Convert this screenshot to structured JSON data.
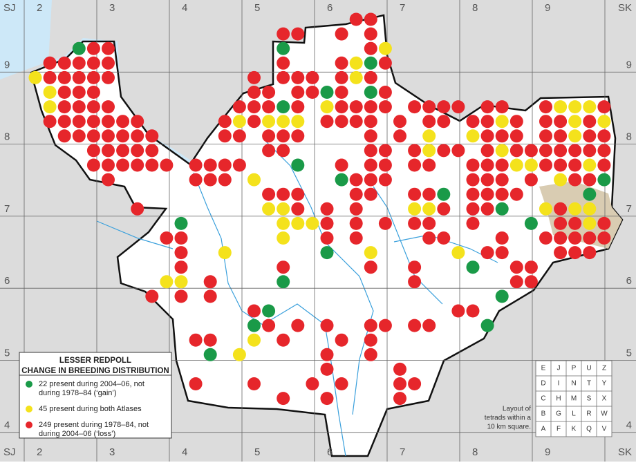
{
  "grid": {
    "corner_left": "SJ",
    "corner_right": "SK",
    "columns": [
      "2",
      "3",
      "4",
      "5",
      "6",
      "7",
      "8",
      "9"
    ],
    "rows": [
      "9",
      "8",
      "7",
      "6",
      "5",
      "4"
    ]
  },
  "legend": {
    "title_lines": [
      "LESSER REDPOLL",
      "CHANGE IN BREEDING DISTRIBUTION"
    ],
    "items": [
      {
        "color": "#1a9a48",
        "lines": [
          "22 present during 2004–06, not",
          "during 1978–84 (‘gain’)"
        ]
      },
      {
        "color": "#f4e21c",
        "lines": [
          "45 present during both Atlases"
        ]
      },
      {
        "color": "#e6262b",
        "lines": [
          "249 present during 1978–84, not",
          "during 2004–06 (‘loss’)"
        ]
      }
    ]
  },
  "tetrad_layout": {
    "caption_lines": [
      "Layout of",
      "tetrads within a",
      "10 km square."
    ],
    "rows": [
      [
        "E",
        "J",
        "P",
        "U",
        "Z"
      ],
      [
        "D",
        "I",
        "N",
        "T",
        "Y"
      ],
      [
        "C",
        "H",
        "M",
        "S",
        "X"
      ],
      [
        "B",
        "G",
        "L",
        "R",
        "W"
      ],
      [
        "A",
        "F",
        "K",
        "Q",
        "V"
      ]
    ]
  }
}
